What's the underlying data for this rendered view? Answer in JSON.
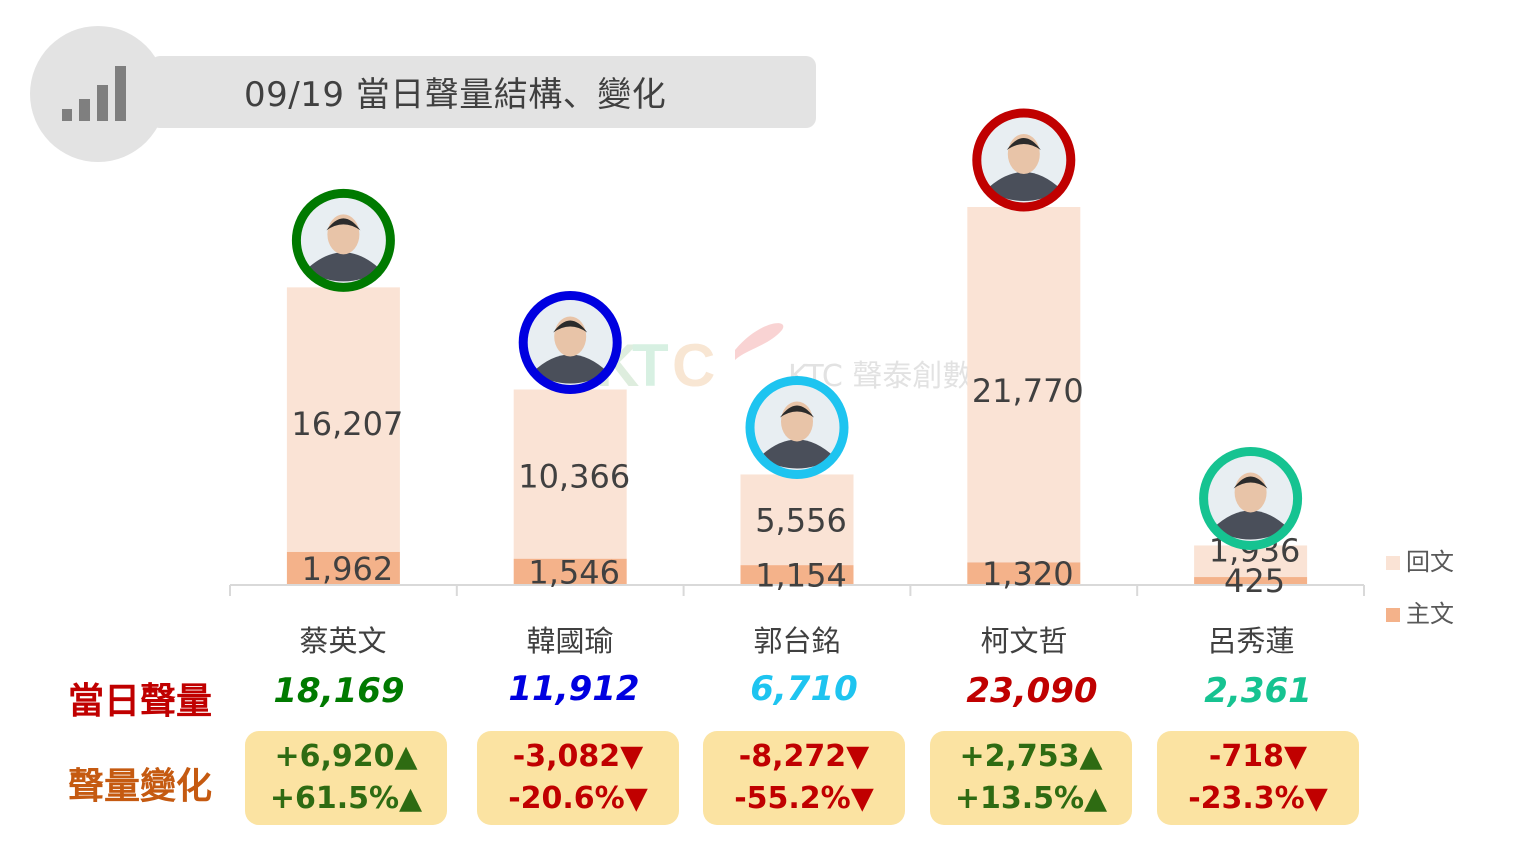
{
  "header": {
    "title": "09/19 當日聲量結構、變化",
    "icon": "signal-bars-icon"
  },
  "watermark": {
    "text": "KTC 聲泰創數據"
  },
  "row_labels": {
    "total": "當日聲量",
    "change": "聲量變化"
  },
  "legend": [
    {
      "label": "回文",
      "color": "#fae3d5"
    },
    {
      "label": "主文",
      "color": "#f4b28a"
    }
  ],
  "colors": {
    "reply": "#fae3d5",
    "main": "#f4b28a",
    "up": "#2e6b12",
    "down": "#c00000",
    "box": "#fbe3a2",
    "total_label": "#c00000",
    "change_label": "#c55a11"
  },
  "candidates": [
    {
      "name": "蔡英文",
      "color": "#007a00",
      "total": "18,169",
      "change_abs": "+6,920▲",
      "change_pct": "+61.5%▲",
      "direction": "up"
    },
    {
      "name": "韓國瑜",
      "color": "#0000e0",
      "total": "11,912",
      "change_abs": "-3,082▼",
      "change_pct": "-20.6%▼",
      "direction": "down"
    },
    {
      "name": "郭台銘",
      "color": "#1ec4f0",
      "total": "6,710",
      "change_abs": "-8,272▼",
      "change_pct": "-55.2%▼",
      "direction": "down"
    },
    {
      "name": "柯文哲",
      "color": "#c00000",
      "total": "23,090",
      "change_abs": "+2,753▲",
      "change_pct": "+13.5%▲",
      "direction": "up"
    },
    {
      "name": "呂秀蓮",
      "color": "#16c391",
      "total": "2,361",
      "change_abs": "-718▼",
      "change_pct": "-23.3%▼",
      "direction": "down"
    }
  ],
  "chart_data": {
    "type": "bar",
    "stacked": true,
    "categories": [
      "蔡英文",
      "韓國瑜",
      "郭台銘",
      "柯文哲",
      "呂秀蓮"
    ],
    "series": [
      {
        "name": "主文",
        "values": [
          1962,
          1546,
          1154,
          1320,
          425
        ],
        "labels": [
          "1,962",
          "1,546",
          "1,154",
          "1,320",
          "425"
        ]
      },
      {
        "name": "回文",
        "values": [
          16207,
          10366,
          5556,
          21770,
          1936
        ],
        "labels": [
          "16,207",
          "10,366",
          "5,556",
          "21,770",
          "1,936"
        ]
      }
    ],
    "legend_position": "right",
    "grid": false
  }
}
